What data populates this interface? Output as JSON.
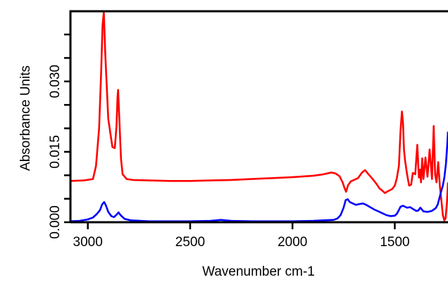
{
  "chart_data": {
    "type": "line",
    "title": "",
    "xlabel": "Wavenumber cm-1",
    "ylabel": "Absorbance Units",
    "x_reversed": true,
    "xlim": [
      3085,
      1240
    ],
    "ylim": [
      0,
      0.04495
    ],
    "x_ticks": [
      3000,
      2500,
      2000,
      1500
    ],
    "x_tick_labels": [
      "3000",
      "2500",
      "2000",
      "1500"
    ],
    "y_ticks": [
      0,
      0.005,
      0.01,
      0.015,
      0.02,
      0.025,
      0.03,
      0.035,
      0.04
    ],
    "y_tick_labels": [
      "0.000",
      "",
      "",
      "0.015",
      "",
      "",
      "0.030",
      "",
      ""
    ],
    "grid": false,
    "legend": "none",
    "series": [
      {
        "color": "#ff0000",
        "x": [
          3085,
          3020,
          2975,
          2960,
          2945,
          2935,
          2928,
          2922,
          2915,
          2900,
          2880,
          2868,
          2860,
          2855,
          2852,
          2846,
          2838,
          2830,
          2810,
          2780,
          2700,
          2600,
          2500,
          2400,
          2300,
          2200,
          2100,
          2000,
          1900,
          1850,
          1810,
          1790,
          1770,
          1755,
          1745,
          1738,
          1728,
          1715,
          1700,
          1680,
          1660,
          1645,
          1630,
          1610,
          1590,
          1575,
          1560,
          1548,
          1538,
          1525,
          1512,
          1500,
          1490,
          1480,
          1472,
          1465,
          1460,
          1455,
          1450,
          1440,
          1430,
          1420,
          1412,
          1400,
          1390,
          1382,
          1377,
          1372,
          1366,
          1360,
          1350,
          1340,
          1330,
          1318,
          1310,
          1303,
          1296,
          1288,
          1280,
          1272,
          1265,
          1258,
          1252,
          1245,
          1240
        ],
        "y": [
          0.0088,
          0.0089,
          0.0092,
          0.012,
          0.02,
          0.032,
          0.042,
          0.0448,
          0.036,
          0.022,
          0.016,
          0.0158,
          0.0205,
          0.0265,
          0.0282,
          0.022,
          0.0135,
          0.0102,
          0.0092,
          0.009,
          0.0089,
          0.0088,
          0.0088,
          0.0089,
          0.009,
          0.0092,
          0.0094,
          0.0096,
          0.0099,
          0.0102,
          0.0106,
          0.0104,
          0.0098,
          0.0085,
          0.0072,
          0.0065,
          0.0079,
          0.0087,
          0.009,
          0.0094,
          0.0106,
          0.0111,
          0.0103,
          0.0093,
          0.0082,
          0.0072,
          0.0067,
          0.0062,
          0.0065,
          0.0068,
          0.0071,
          0.0078,
          0.0094,
          0.012,
          0.0195,
          0.0236,
          0.0212,
          0.0155,
          0.0132,
          0.0102,
          0.0078,
          0.008,
          0.0105,
          0.0102,
          0.0165,
          0.0095,
          0.0112,
          0.0085,
          0.0136,
          0.0092,
          0.0138,
          0.0097,
          0.0155,
          0.0092,
          0.0205,
          0.0102,
          0.0085,
          0.0128,
          0.0078,
          0.0045,
          0.0015,
          0.0004,
          0.0008,
          0.0042,
          0.0085
        ]
      },
      {
        "color": "#0000ff",
        "x": [
          3085,
          3040,
          3000,
          2975,
          2955,
          2940,
          2930,
          2920,
          2912,
          2900,
          2885,
          2872,
          2860,
          2850,
          2840,
          2820,
          2790,
          2700,
          2600,
          2500,
          2400,
          2350,
          2300,
          2200,
          2100,
          2000,
          1900,
          1850,
          1800,
          1780,
          1765,
          1750,
          1740,
          1730,
          1720,
          1705,
          1690,
          1670,
          1655,
          1640,
          1620,
          1600,
          1580,
          1560,
          1540,
          1520,
          1500,
          1490,
          1480,
          1472,
          1460,
          1450,
          1440,
          1425,
          1410,
          1395,
          1385,
          1375,
          1360,
          1340,
          1320,
          1300,
          1290,
          1280,
          1272,
          1265,
          1258,
          1250,
          1244,
          1240
        ],
        "y": [
          0.0002,
          0.0003,
          0.0006,
          0.001,
          0.0018,
          0.0026,
          0.0038,
          0.0043,
          0.0036,
          0.0022,
          0.0013,
          0.0011,
          0.0016,
          0.0021,
          0.0015,
          0.0007,
          0.0004,
          0.0002,
          0.0002,
          0.0002,
          0.0003,
          0.0005,
          0.0003,
          0.0002,
          0.0002,
          0.0002,
          0.0003,
          0.0004,
          0.0005,
          0.0008,
          0.0015,
          0.0031,
          0.0047,
          0.0049,
          0.0043,
          0.004,
          0.0037,
          0.0039,
          0.004,
          0.0037,
          0.0032,
          0.0027,
          0.0023,
          0.0019,
          0.0015,
          0.0013,
          0.0014,
          0.0018,
          0.0026,
          0.0033,
          0.0035,
          0.0033,
          0.0031,
          0.0032,
          0.0028,
          0.0024,
          0.0025,
          0.0031,
          0.0023,
          0.0022,
          0.0024,
          0.003,
          0.0038,
          0.0055,
          0.0068,
          0.0078,
          0.0095,
          0.0125,
          0.0162,
          0.0193
        ]
      }
    ]
  }
}
